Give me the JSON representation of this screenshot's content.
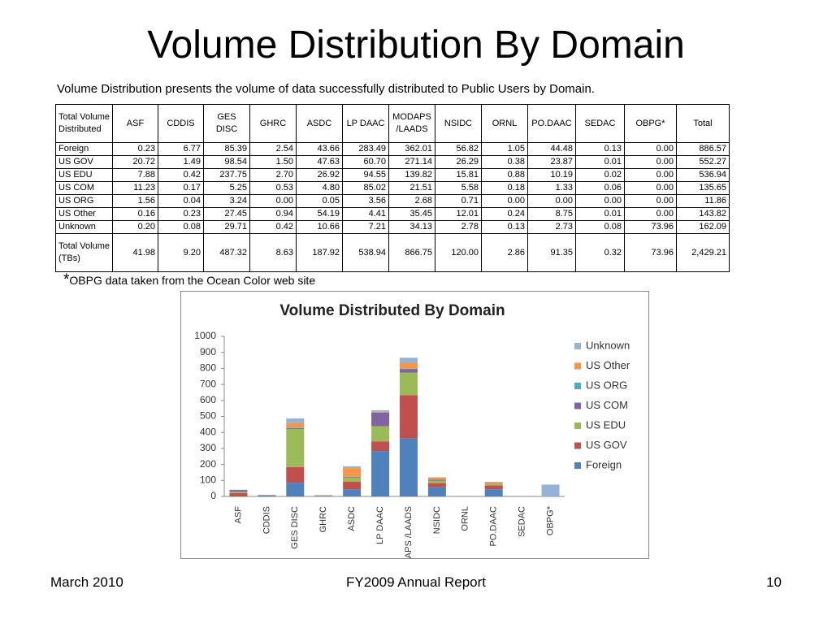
{
  "header": {
    "title": "Volume Distribution By Domain",
    "subtitle": "Volume Distribution presents the volume of data successfully distributed to Public Users by Domain."
  },
  "table": {
    "header": [
      "Total Volume Distributed",
      "ASF",
      "CDDIS",
      "GES DISC",
      "GHRC",
      "ASDC",
      "LP DAAC",
      "MODAPS /LAADS",
      "NSIDC",
      "ORNL",
      "PO.DAAC",
      "SEDAC",
      "OBPG*",
      "Total"
    ],
    "rows": [
      [
        "Foreign",
        "0.23",
        "6.77",
        "85.39",
        "2.54",
        "43.66",
        "283.49",
        "362.01",
        "56.82",
        "1.05",
        "44.48",
        "0.13",
        "0.00",
        "886.57"
      ],
      [
        "US GOV",
        "20.72",
        "1.49",
        "98.54",
        "1.50",
        "47.63",
        "60.70",
        "271.14",
        "26.29",
        "0.38",
        "23.87",
        "0.01",
        "0.00",
        "552.27"
      ],
      [
        "US EDU",
        "7.88",
        "0.42",
        "237.75",
        "2.70",
        "26.92",
        "94.55",
        "139.82",
        "15.81",
        "0.88",
        "10.19",
        "0.02",
        "0.00",
        "536.94"
      ],
      [
        "US COM",
        "11.23",
        "0.17",
        "5.25",
        "0.53",
        "4.80",
        "85.02",
        "21.51",
        "5.58",
        "0.18",
        "1.33",
        "0.06",
        "0.00",
        "135.65"
      ],
      [
        "US ORG",
        "1.56",
        "0.04",
        "3.24",
        "0.00",
        "0.05",
        "3.56",
        "2.68",
        "0.71",
        "0.00",
        "0.00",
        "0.00",
        "0.00",
        "11.86"
      ],
      [
        "US Other",
        "0.16",
        "0.23",
        "27.45",
        "0.94",
        "54.19",
        "4.41",
        "35.45",
        "12.01",
        "0.24",
        "8.75",
        "0.01",
        "0.00",
        "143.82"
      ],
      [
        "Unknown",
        "0.20",
        "0.08",
        "29.71",
        "0.42",
        "10.66",
        "7.21",
        "34.13",
        "2.78",
        "0.13",
        "2.73",
        "0.08",
        "73.96",
        "162.09"
      ],
      [
        "Total Volume (TBs)",
        "41.98",
        "9.20",
        "487.32",
        "8.63",
        "187.92",
        "538.94",
        "866.75",
        "120.00",
        "2.86",
        "91.35",
        "0.32",
        "73.96",
        "2,429.21"
      ]
    ]
  },
  "note": {
    "mark": "*",
    "text": "OBPG data taken from the Ocean Color web site"
  },
  "chart_data": {
    "type": "stacked_bar",
    "title": "Volume Distributed By Domain",
    "categories": [
      "ASF",
      "CDDIS",
      "GES DISC",
      "GHRC",
      "ASDC",
      "LP DAAC",
      "MODAPS /LAADS",
      "NSIDC",
      "ORNL",
      "PO.DAAC",
      "SEDAC",
      "OBPG*"
    ],
    "series": [
      {
        "name": "Foreign",
        "color": "#4f81bd",
        "values": [
          0.23,
          6.77,
          85.39,
          2.54,
          43.66,
          283.49,
          362.01,
          56.82,
          1.05,
          44.48,
          0.13,
          0.0
        ]
      },
      {
        "name": "US GOV",
        "color": "#c0504d",
        "values": [
          20.72,
          1.49,
          98.54,
          1.5,
          47.63,
          60.7,
          271.14,
          26.29,
          0.38,
          23.87,
          0.01,
          0.0
        ]
      },
      {
        "name": "US EDU",
        "color": "#9bbb59",
        "values": [
          7.88,
          0.42,
          237.75,
          2.7,
          26.92,
          94.55,
          139.82,
          15.81,
          0.88,
          10.19,
          0.02,
          0.0
        ]
      },
      {
        "name": "US COM",
        "color": "#8064a2",
        "values": [
          11.23,
          0.17,
          5.25,
          0.53,
          4.8,
          85.02,
          21.51,
          5.58,
          0.18,
          1.33,
          0.06,
          0.0
        ]
      },
      {
        "name": "US ORG",
        "color": "#4bacc6",
        "values": [
          1.56,
          0.04,
          3.24,
          0.0,
          0.05,
          3.56,
          2.68,
          0.71,
          0.0,
          0.0,
          0.0,
          0.0
        ]
      },
      {
        "name": "US Other",
        "color": "#f79646",
        "values": [
          0.16,
          0.23,
          27.45,
          0.94,
          54.19,
          4.41,
          35.45,
          12.01,
          0.24,
          8.75,
          0.01,
          0.0
        ]
      },
      {
        "name": "Unknown",
        "color": "#95b3d7",
        "values": [
          0.2,
          0.08,
          29.71,
          0.42,
          10.66,
          7.21,
          34.13,
          2.78,
          0.13,
          2.73,
          0.08,
          73.96
        ]
      }
    ],
    "ylim": [
      0,
      1000
    ],
    "yticks": [
      0,
      100,
      200,
      300,
      400,
      500,
      600,
      700,
      800,
      900,
      1000
    ],
    "grid": false,
    "legend": "right"
  },
  "footer": {
    "left": "March 2010",
    "center": "FY2009 Annual Report",
    "right": "10"
  }
}
